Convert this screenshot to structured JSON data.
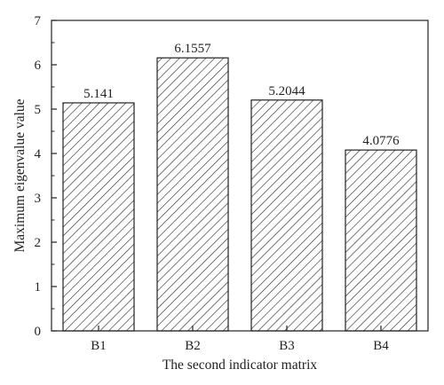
{
  "chart_data": {
    "type": "bar",
    "title": "",
    "xlabel": "The second indicator matrix",
    "ylabel": "Maximum eigenvalue value",
    "categories": [
      "B1",
      "B2",
      "B3",
      "B4"
    ],
    "values": [
      5.141,
      6.1557,
      5.2044,
      4.0776
    ],
    "value_labels": [
      "5.141",
      "6.1557",
      "5.2044",
      "4.0776"
    ],
    "ylim": [
      0,
      7
    ],
    "yticks": [
      "0",
      "1",
      "2",
      "3",
      "4",
      "5",
      "6",
      "7"
    ],
    "grid": false,
    "legend": "none",
    "bar_fill": "diagonal-hatch",
    "colors": {
      "bar_stroke": "#222222",
      "hatch": "#222222",
      "axis": "#222222"
    }
  }
}
